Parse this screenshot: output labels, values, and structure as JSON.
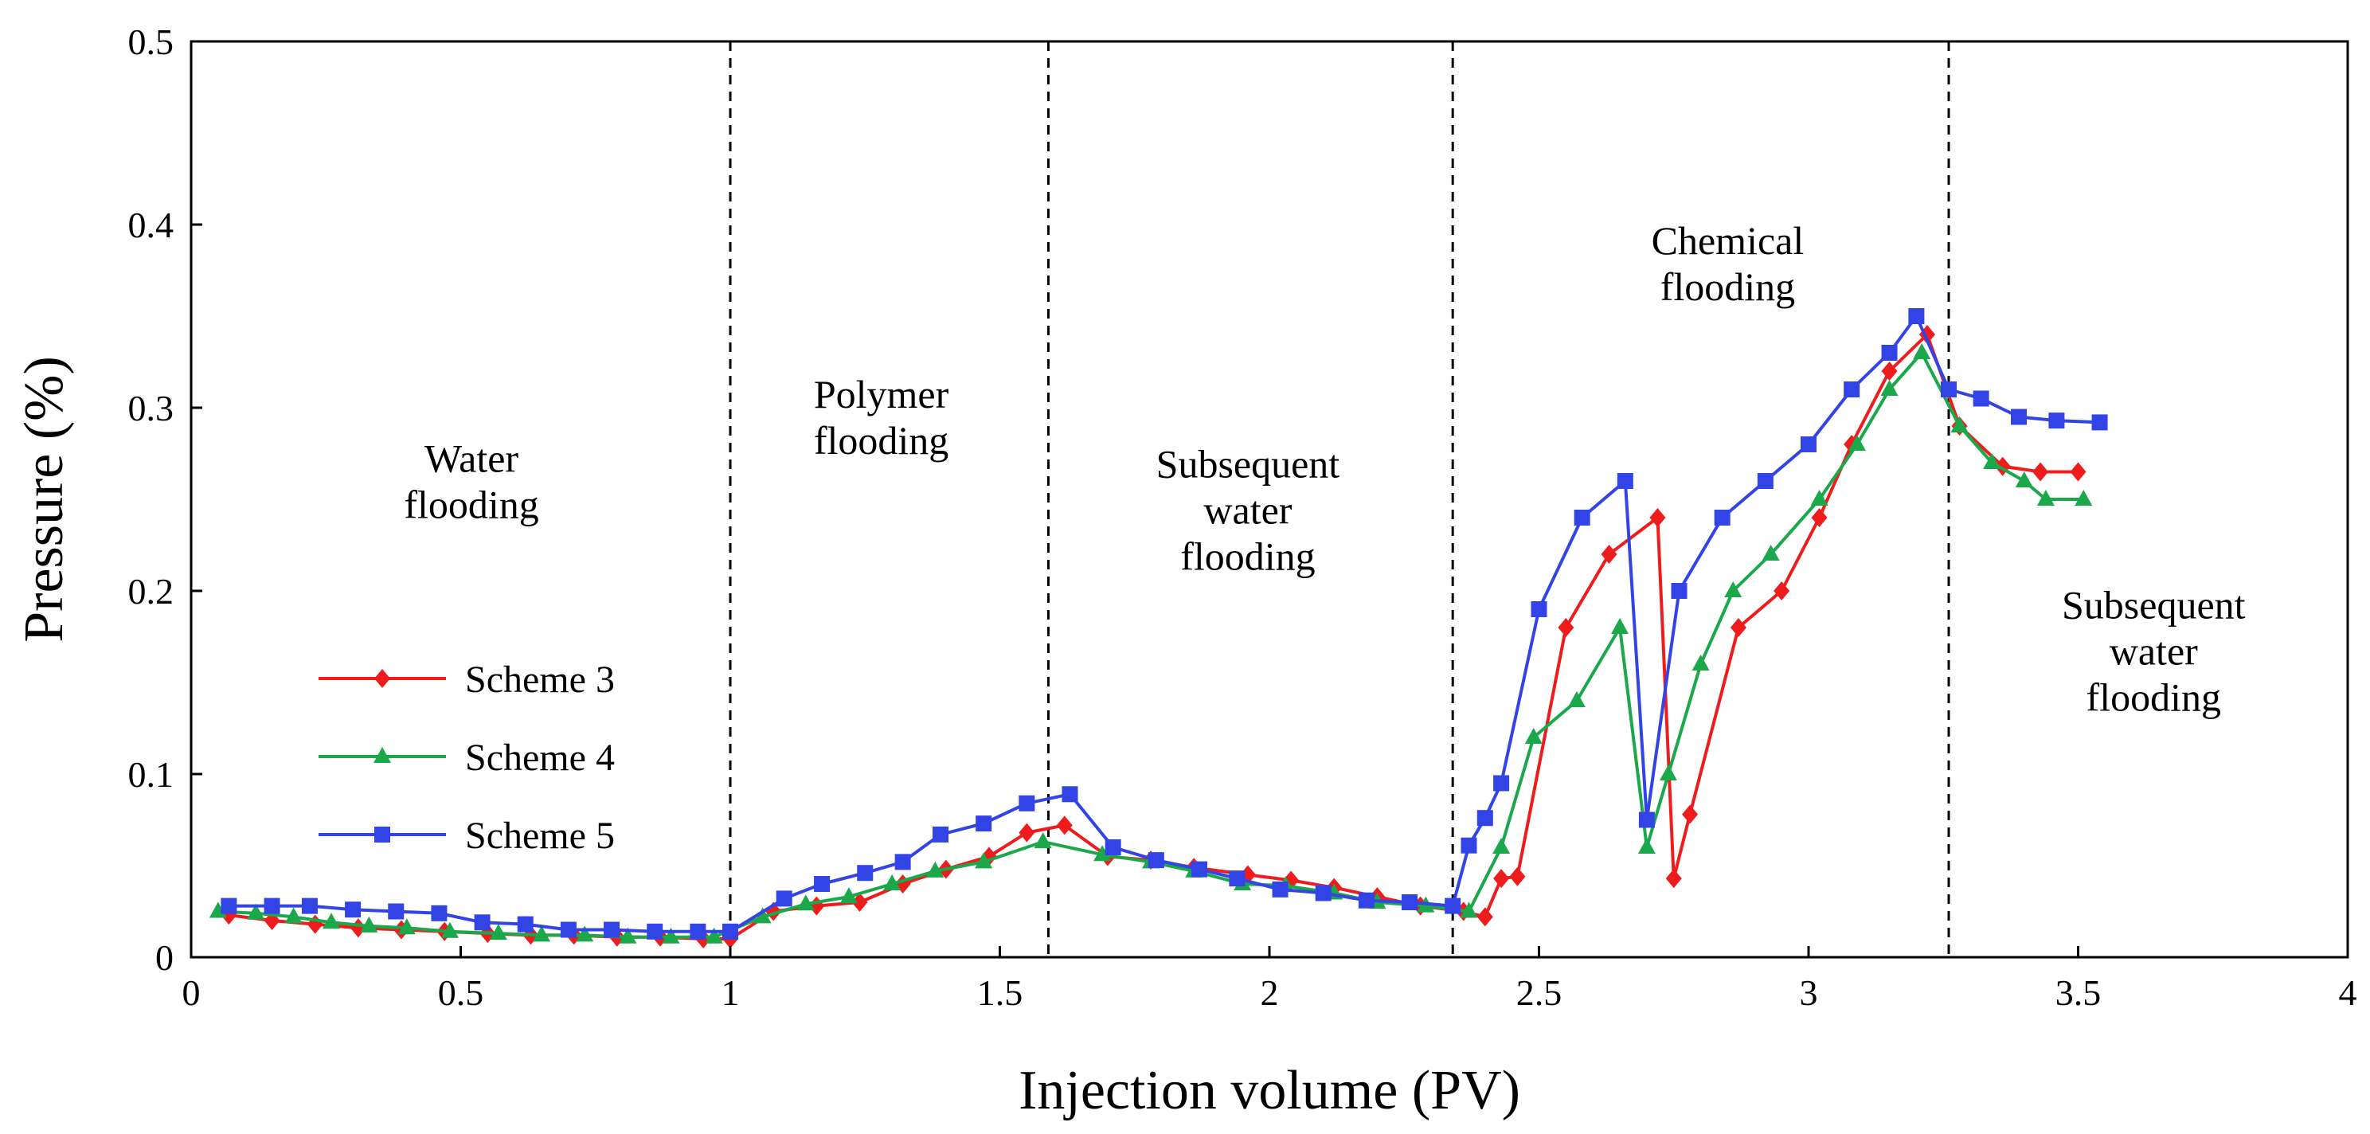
{
  "chart_data": {
    "type": "line",
    "title": "",
    "xlabel": "Injection volume (PV)",
    "ylabel": "Pressure (%)",
    "xlim": [
      0,
      4
    ],
    "ylim": [
      0,
      0.5
    ],
    "xticks": [
      "0",
      "0.5",
      "1",
      "1.5",
      "2",
      "2.5",
      "3",
      "3.5",
      "4"
    ],
    "yticks": [
      "0",
      "0.1",
      "0.2",
      "0.3",
      "0.4",
      "0.5"
    ],
    "grid": false,
    "legend_position": "lower-left",
    "stage_boundaries": [
      1.0,
      1.59,
      2.34,
      3.26
    ],
    "stage_labels": [
      {
        "lines": [
          "Water",
          "flooding"
        ],
        "x": 0.52,
        "y": 0.265
      },
      {
        "lines": [
          "Polymer",
          "flooding"
        ],
        "x": 1.28,
        "y": 0.3
      },
      {
        "lines": [
          "Subsequent",
          "water",
          "flooding"
        ],
        "x": 1.96,
        "y": 0.262
      },
      {
        "lines": [
          "Chemical",
          "flooding"
        ],
        "x": 2.85,
        "y": 0.384
      },
      {
        "lines": [
          "Subsequent",
          "water",
          "flooding"
        ],
        "x": 3.64,
        "y": 0.185
      }
    ],
    "series": [
      {
        "name": "Scheme 3",
        "color": "#ee1c1c",
        "marker": "diamond",
        "x": [
          0.07,
          0.15,
          0.23,
          0.31,
          0.39,
          0.47,
          0.55,
          0.63,
          0.71,
          0.79,
          0.87,
          0.95,
          1.0,
          1.08,
          1.16,
          1.24,
          1.32,
          1.4,
          1.48,
          1.55,
          1.62,
          1.7,
          1.78,
          1.86,
          1.96,
          2.04,
          2.12,
          2.2,
          2.28,
          2.36,
          2.4,
          2.43,
          2.46,
          2.55,
          2.63,
          2.72,
          2.75,
          2.78,
          2.87,
          2.95,
          3.02,
          3.08,
          3.15,
          3.22,
          3.28,
          3.36,
          3.43,
          3.5
        ],
        "y": [
          0.023,
          0.02,
          0.018,
          0.016,
          0.015,
          0.014,
          0.013,
          0.012,
          0.012,
          0.011,
          0.011,
          0.01,
          0.01,
          0.025,
          0.028,
          0.03,
          0.04,
          0.048,
          0.055,
          0.068,
          0.072,
          0.055,
          0.053,
          0.049,
          0.045,
          0.042,
          0.038,
          0.033,
          0.028,
          0.025,
          0.022,
          0.043,
          0.044,
          0.18,
          0.22,
          0.24,
          0.043,
          0.078,
          0.18,
          0.2,
          0.24,
          0.28,
          0.32,
          0.34,
          0.29,
          0.268,
          0.265,
          0.265
        ]
      },
      {
        "name": "Scheme 4",
        "color": "#1aa84b",
        "marker": "triangle",
        "x": [
          0.05,
          0.12,
          0.19,
          0.26,
          0.33,
          0.4,
          0.48,
          0.57,
          0.65,
          0.73,
          0.81,
          0.89,
          0.97,
          1.06,
          1.14,
          1.22,
          1.3,
          1.38,
          1.47,
          1.58,
          1.69,
          1.78,
          1.86,
          1.95,
          2.03,
          2.12,
          2.2,
          2.29,
          2.37,
          2.43,
          2.49,
          2.57,
          2.65,
          2.7,
          2.74,
          2.8,
          2.86,
          2.93,
          3.02,
          3.09,
          3.15,
          3.21,
          3.28,
          3.34,
          3.4,
          3.44,
          3.51
        ],
        "y": [
          0.025,
          0.024,
          0.022,
          0.019,
          0.017,
          0.016,
          0.014,
          0.013,
          0.012,
          0.012,
          0.011,
          0.011,
          0.011,
          0.022,
          0.029,
          0.033,
          0.04,
          0.047,
          0.052,
          0.063,
          0.056,
          0.052,
          0.047,
          0.04,
          0.039,
          0.035,
          0.03,
          0.028,
          0.025,
          0.06,
          0.12,
          0.14,
          0.18,
          0.06,
          0.1,
          0.16,
          0.2,
          0.22,
          0.25,
          0.28,
          0.31,
          0.33,
          0.29,
          0.27,
          0.26,
          0.25,
          0.25
        ]
      },
      {
        "name": "Scheme 5",
        "color": "#3344e6",
        "marker": "square",
        "x": [
          0.07,
          0.15,
          0.22,
          0.3,
          0.38,
          0.46,
          0.54,
          0.62,
          0.7,
          0.78,
          0.86,
          0.94,
          1.0,
          1.1,
          1.17,
          1.25,
          1.32,
          1.39,
          1.47,
          1.55,
          1.63,
          1.71,
          1.79,
          1.87,
          1.94,
          2.02,
          2.1,
          2.18,
          2.26,
          2.34,
          2.37,
          2.4,
          2.43,
          2.5,
          2.58,
          2.66,
          2.7,
          2.76,
          2.84,
          2.92,
          3.0,
          3.08,
          3.15,
          3.2,
          3.26,
          3.32,
          3.39,
          3.46,
          3.54
        ],
        "y": [
          0.028,
          0.028,
          0.028,
          0.026,
          0.025,
          0.024,
          0.019,
          0.018,
          0.015,
          0.015,
          0.014,
          0.014,
          0.014,
          0.032,
          0.04,
          0.046,
          0.052,
          0.067,
          0.073,
          0.084,
          0.089,
          0.06,
          0.053,
          0.048,
          0.043,
          0.037,
          0.035,
          0.031,
          0.03,
          0.028,
          0.061,
          0.076,
          0.095,
          0.19,
          0.24,
          0.26,
          0.075,
          0.2,
          0.24,
          0.26,
          0.28,
          0.31,
          0.33,
          0.35,
          0.31,
          0.305,
          0.295,
          0.293,
          0.292
        ]
      }
    ]
  }
}
